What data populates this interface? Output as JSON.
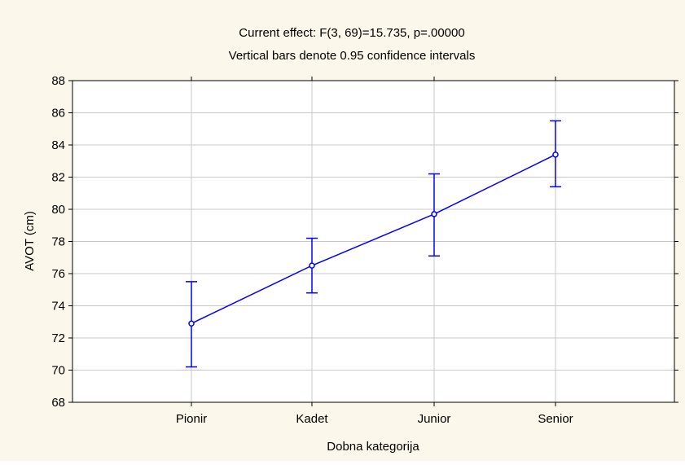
{
  "chart_data": {
    "type": "line",
    "title": "Current effect: F(3, 69)=15.735, p=.00000",
    "subtitle": "Vertical bars denote 0.95 confidence intervals",
    "xlabel": "Dobna kategorija",
    "ylabel": "AVOT (cm)",
    "categories": [
      "Pionir",
      "Kadet",
      "Junior",
      "Senior"
    ],
    "y_ticks": [
      68,
      70,
      72,
      74,
      76,
      78,
      80,
      82,
      84,
      86,
      88
    ],
    "ylim": [
      68,
      88
    ],
    "grid": true,
    "series": [
      {
        "values": [
          72.9,
          76.5,
          79.7,
          83.4
        ],
        "ci_lower": [
          70.2,
          74.8,
          77.1,
          81.4
        ],
        "ci_upper": [
          75.5,
          78.2,
          82.2,
          85.5
        ]
      }
    ],
    "colors": {
      "series": "#0000ff",
      "grid": "#c8c8c8",
      "background": "#fbf7ea",
      "plot_area": "#ffffff"
    }
  }
}
